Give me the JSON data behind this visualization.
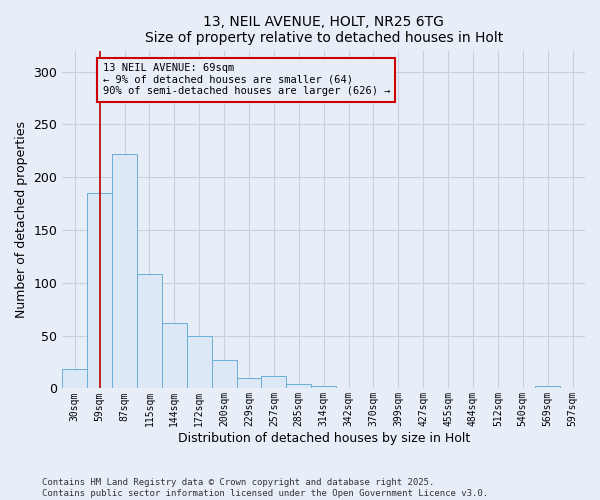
{
  "title1": "13, NEIL AVENUE, HOLT, NR25 6TG",
  "title2": "Size of property relative to detached houses in Holt",
  "xlabel": "Distribution of detached houses by size in Holt",
  "ylabel": "Number of detached properties",
  "categories": [
    "30sqm",
    "59sqm",
    "87sqm",
    "115sqm",
    "144sqm",
    "172sqm",
    "200sqm",
    "229sqm",
    "257sqm",
    "285sqm",
    "314sqm",
    "342sqm",
    "370sqm",
    "399sqm",
    "427sqm",
    "455sqm",
    "484sqm",
    "512sqm",
    "540sqm",
    "569sqm",
    "597sqm"
  ],
  "values": [
    18,
    185,
    222,
    108,
    62,
    50,
    27,
    10,
    12,
    4,
    2,
    0,
    0,
    0,
    0,
    0,
    0,
    0,
    0,
    2,
    0
  ],
  "bar_color": "#dce8f5",
  "bar_edge_color": "#6baed6",
  "vline_x": 1,
  "vline_color": "#c00000",
  "annotation_text": "13 NEIL AVENUE: 69sqm\n← 9% of detached houses are smaller (64)\n90% of semi-detached houses are larger (626) →",
  "annotation_box_color": "#cc0000",
  "annotation_text_color": "#000000",
  "ylim": [
    0,
    320
  ],
  "yticks": [
    0,
    50,
    100,
    150,
    200,
    250,
    300
  ],
  "background_color": "#e8eef8",
  "grid_color": "#c8d0e0",
  "footnote1": "Contains HM Land Registry data © Crown copyright and database right 2025.",
  "footnote2": "Contains public sector information licensed under the Open Government Licence v3.0."
}
